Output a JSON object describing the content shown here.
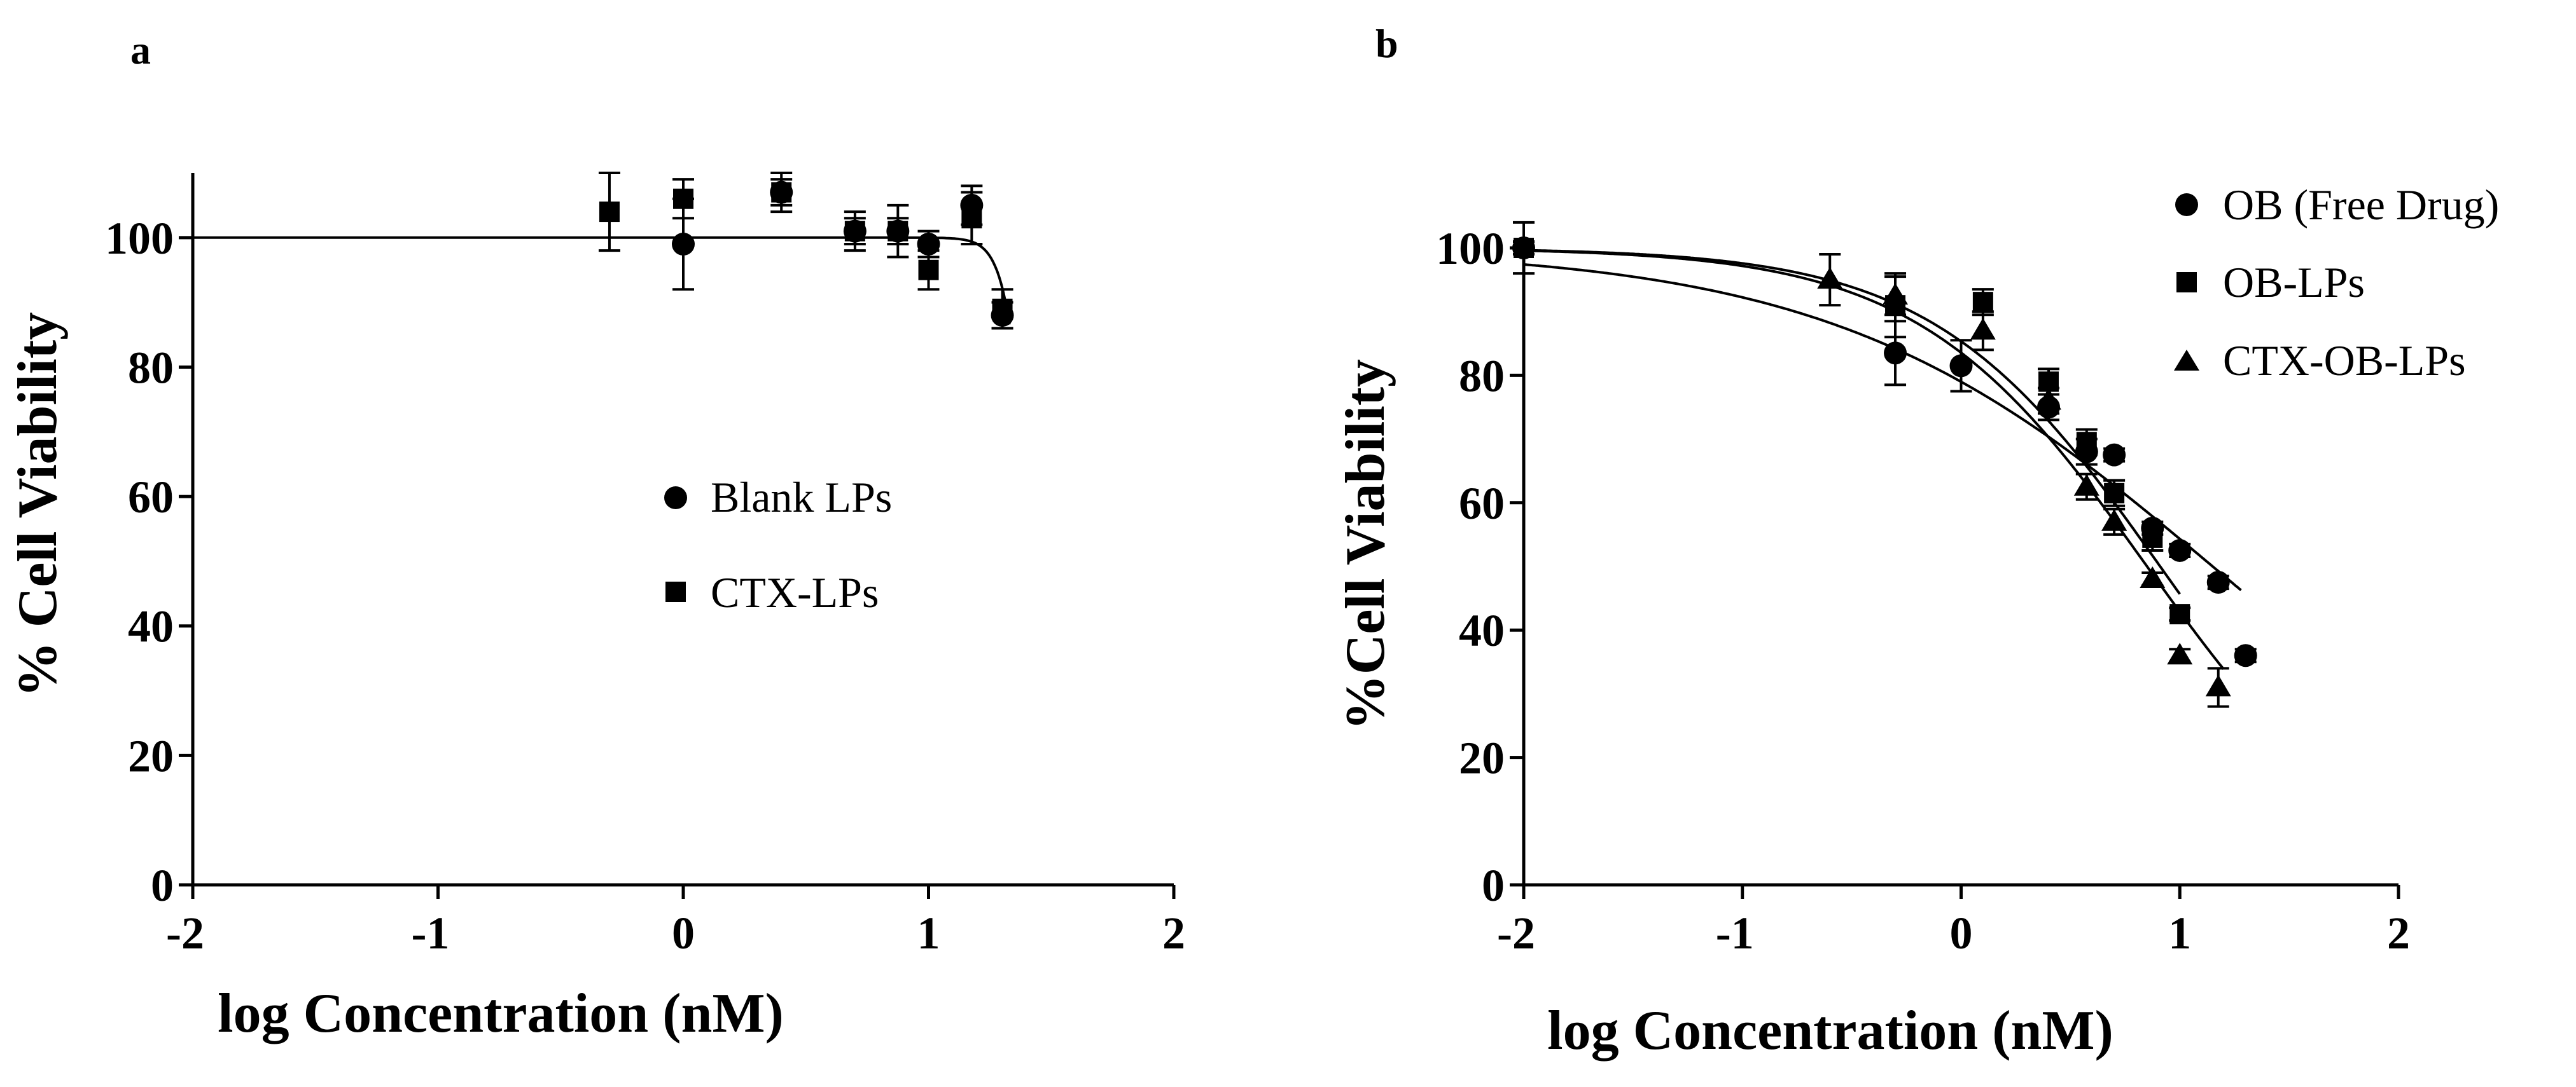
{
  "chart_data": [
    {
      "type": "scatter",
      "panel": "a",
      "title": "",
      "xlabel": "log Concentration (nM)",
      "ylabel": "% Cell Viability",
      "xlim": [
        -2,
        2
      ],
      "ylim": [
        0,
        110
      ],
      "xticks": [
        -2,
        -1,
        0,
        1,
        2
      ],
      "yticks": [
        0,
        20,
        40,
        60,
        80,
        100
      ],
      "legend_position": "center",
      "series": [
        {
          "name": "Blank LPs",
          "marker": "circle",
          "x": [
            0,
            0.4,
            0.7,
            0.875,
            1.0,
            1.176,
            1.301
          ],
          "y": [
            99,
            107,
            101,
            101,
            99,
            105,
            88
          ],
          "err": [
            7,
            2,
            2,
            2,
            2,
            3,
            2
          ]
        },
        {
          "name": "CTX-LPs",
          "marker": "square",
          "x": [
            -0.301,
            0,
            0.4,
            0.7,
            0.875,
            1.0,
            1.176,
            1.301
          ],
          "y": [
            104,
            106,
            107,
            101,
            101,
            95,
            103,
            89
          ],
          "err": [
            6,
            3,
            3,
            3,
            4,
            3,
            4,
            3
          ]
        }
      ],
      "fit_curve": {
        "top": 100,
        "bottom": 0,
        "logIC50": 1.42,
        "hill": 9,
        "x_range": [
          -2,
          1.33
        ]
      }
    },
    {
      "type": "scatter",
      "panel": "b",
      "title": "",
      "xlabel": "log Concentration (nM)",
      "ylabel": "%Cell Viability",
      "xlim": [
        -2,
        2
      ],
      "ylim": [
        0,
        100
      ],
      "xticks": [
        -2,
        -1,
        0,
        1,
        2
      ],
      "yticks": [
        0,
        20,
        40,
        60,
        80,
        100
      ],
      "legend_position": "top-right",
      "series": [
        {
          "name": "OB (Free Drug)",
          "marker": "circle",
          "x": [
            -2,
            -0.301,
            0,
            0.4,
            0.574,
            0.7,
            0.875,
            1.0,
            1.176,
            1.301
          ],
          "y": [
            100,
            83.5,
            81.5,
            75,
            68,
            67.5,
            56,
            52.5,
            47.5,
            36
          ],
          "err": [
            4,
            5,
            4,
            2,
            2,
            1,
            1,
            1,
            1,
            1
          ],
          "fit": {
            "top": 100,
            "bottom": 0,
            "logIC50": 1.15,
            "hill": 0.5,
            "x_range": [
              -2,
              1.28
            ]
          }
        },
        {
          "name": "OB-LPs",
          "marker": "square",
          "x": [
            -2,
            -0.301,
            0.1,
            0.4,
            0.574,
            0.7,
            0.875,
            1.0
          ],
          "y": [
            100,
            91,
            91.5,
            79,
            69.5,
            61.5,
            54.5,
            42.5
          ],
          "err": [
            1,
            5,
            2,
            2,
            2,
            2,
            2,
            1
          ],
          "fit": {
            "top": 100,
            "bottom": 0,
            "logIC50": 0.91,
            "hill": 0.84,
            "x_range": [
              -2,
              1.0
            ]
          }
        },
        {
          "name": "CTX-OB-LPs",
          "marker": "triangle",
          "x": [
            -0.6,
            -0.301,
            0.1,
            0.4,
            0.574,
            0.7,
            0.875,
            1.0,
            1.176
          ],
          "y": [
            95,
            92.5,
            87,
            76,
            62.5,
            57,
            48,
            36,
            31
          ],
          "err": [
            4,
            3,
            3,
            2,
            2,
            2,
            1,
            1,
            3
          ],
          "fit": {
            "top": 100,
            "bottom": 0,
            "logIC50": 0.85,
            "hill": 0.83,
            "x_range": [
              -2,
              1.2
            ]
          }
        }
      ]
    }
  ]
}
